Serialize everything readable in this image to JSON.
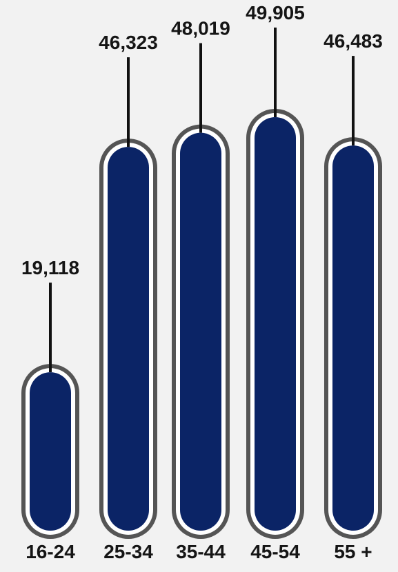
{
  "chart_data": {
    "type": "bar",
    "categories": [
      "16-24",
      "25-34",
      "35-44",
      "45-54",
      "55 +"
    ],
    "values": [
      19118,
      46323,
      48019,
      49905,
      46483
    ],
    "value_labels": [
      "19,118",
      "46,323",
      "48,019",
      "49,905",
      "46,483"
    ],
    "title": "",
    "xlabel": "",
    "ylabel": "",
    "grid": false,
    "legend": "none"
  },
  "colors": {
    "background": "#f2f2f2",
    "bar_fill": "#0b2466",
    "bar_outline": "#555555",
    "bar_gap": "#ffffff",
    "leader_line": "#111111",
    "text": "#151515"
  }
}
